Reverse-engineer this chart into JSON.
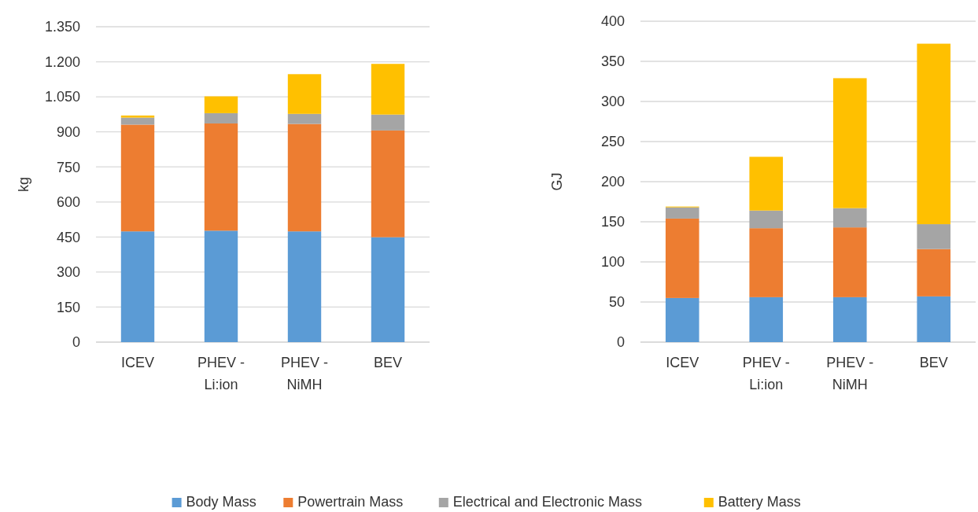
{
  "chart_data": [
    {
      "type": "bar",
      "stacked": true,
      "ylabel": "kg",
      "categories": [
        "ICEV",
        "PHEV - Li:ion",
        "PHEV - NiMH",
        "BEV"
      ],
      "ylim": [
        0,
        1350
      ],
      "yticks": [
        0,
        150,
        300,
        450,
        600,
        750,
        900,
        {
          "value": 1050,
          "label": "1.050"
        },
        {
          "value": 1200,
          "label": "1.200"
        },
        {
          "value": 1350,
          "label": "1.350"
        }
      ],
      "grid": "y",
      "legend": "bottom",
      "series": [
        {
          "name": "Body Mass",
          "color": "#5b9bd5",
          "values": [
            474,
            477,
            474,
            449
          ]
        },
        {
          "name": "Powertrain Mass",
          "color": "#ed7d31",
          "values": [
            457,
            459,
            460,
            457
          ]
        },
        {
          "name": "Electrical and Electronic Mass",
          "color": "#a5a5a5",
          "values": [
            30,
            44,
            43,
            68
          ]
        },
        {
          "name": "Battery Mass",
          "color": "#ffc000",
          "values": [
            9,
            72,
            170,
            217
          ]
        }
      ]
    },
    {
      "type": "bar",
      "stacked": true,
      "ylabel": "GJ",
      "categories": [
        "ICEV",
        "PHEV - Li:ion",
        "PHEV - NiMH",
        "BEV"
      ],
      "ylim": [
        0,
        400
      ],
      "yticks": [
        0,
        50,
        100,
        150,
        200,
        250,
        300,
        350,
        400
      ],
      "grid": "y",
      "series": [
        {
          "name": "Body Mass",
          "color": "#5b9bd5",
          "values": [
            55,
            56,
            56,
            57
          ]
        },
        {
          "name": "Powertrain Mass",
          "color": "#ed7d31",
          "values": [
            99,
            86,
            87,
            59
          ]
        },
        {
          "name": "Electrical and Electronic Mass",
          "color": "#a5a5a5",
          "values": [
            14,
            22,
            24,
            31
          ]
        },
        {
          "name": "Battery Mass",
          "color": "#ffc000",
          "values": [
            1,
            67,
            162,
            225
          ]
        }
      ]
    }
  ]
}
